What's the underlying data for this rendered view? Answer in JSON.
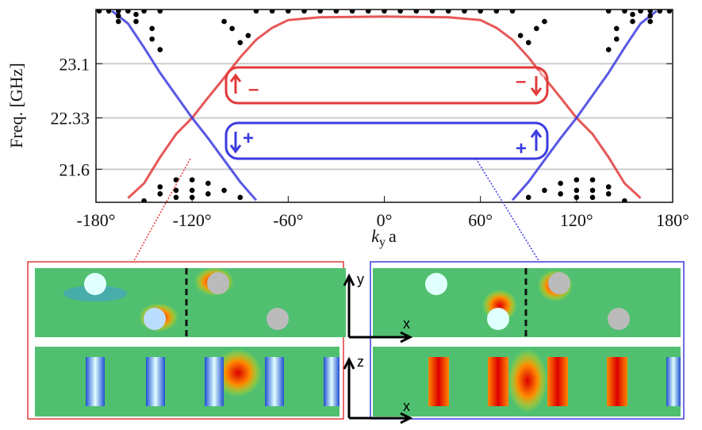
{
  "chart_data": {
    "type": "line",
    "ylabel": "Freq. [GHz]",
    "xlabel_parts": [
      "k",
      "y",
      "a"
    ],
    "xlim": [
      -180,
      180
    ],
    "ylim": [
      21.13,
      23.87
    ],
    "xticks": [
      {
        "value": -180,
        "label": "-180°"
      },
      {
        "value": -120,
        "label": "-120°"
      },
      {
        "value": -60,
        "label": "-60°"
      },
      {
        "value": 0,
        "label": "0°"
      },
      {
        "value": 60,
        "label": "60°"
      },
      {
        "value": 120,
        "label": "120°"
      },
      {
        "value": 180,
        "label": "180°"
      }
    ],
    "yticks": [
      21.6,
      22.33,
      23.1
    ],
    "grid": true,
    "series": [
      {
        "color": "#e23a3a",
        "x": [
          -160,
          -150,
          -140,
          -130,
          -120,
          -110,
          -100,
          -90,
          -80,
          -70,
          -60,
          -40,
          0,
          40,
          60,
          70,
          80,
          90,
          100,
          110,
          120,
          130,
          140,
          150,
          160
        ],
        "values": [
          21.19,
          21.4,
          21.77,
          22.1,
          22.33,
          22.62,
          22.9,
          23.19,
          23.44,
          23.61,
          23.72,
          23.76,
          23.77,
          23.76,
          23.72,
          23.61,
          23.44,
          23.19,
          22.9,
          22.62,
          22.33,
          22.1,
          21.77,
          21.4,
          21.19
        ]
      },
      {
        "color": "#3b3be0",
        "x": [
          -170,
          -160,
          -150,
          -140,
          -130,
          -120,
          -110,
          -100,
          -90,
          -80,
          0,
          80,
          90,
          100,
          110,
          120,
          130,
          140,
          150,
          160,
          170
        ],
        "values": [
          23.85,
          23.67,
          23.33,
          22.97,
          22.65,
          22.33,
          22.04,
          21.73,
          21.42,
          21.16,
          null,
          21.16,
          21.42,
          21.73,
          22.04,
          22.33,
          22.65,
          22.97,
          23.33,
          23.67,
          23.85
        ]
      }
    ],
    "points": {
      "color": "#000000",
      "x": [
        -178,
        -172,
        -166,
        -160,
        -150,
        -140,
        -80,
        -70,
        -60,
        -50,
        -40,
        -30,
        -20,
        -10,
        0,
        10,
        20,
        30,
        40,
        50,
        60,
        70,
        80,
        140,
        150,
        160,
        166,
        172,
        178,
        -166,
        -166,
        -155,
        -155,
        -145,
        -145,
        -140,
        -100,
        -95,
        -90,
        -85,
        166,
        166,
        155,
        155,
        145,
        145,
        140,
        100,
        95,
        90,
        85,
        -150,
        -140,
        -140,
        -130,
        -130,
        -130,
        -120,
        -120,
        -120,
        -110,
        -110,
        -100,
        -90,
        150,
        140,
        140,
        130,
        130,
        130,
        120,
        120,
        120,
        110,
        110,
        100,
        90
      ],
      "values": [
        23.85,
        23.85,
        23.85,
        23.85,
        23.85,
        23.85,
        23.85,
        23.85,
        23.85,
        23.85,
        23.85,
        23.85,
        23.85,
        23.85,
        23.85,
        23.85,
        23.85,
        23.85,
        23.85,
        23.85,
        23.85,
        23.85,
        23.85,
        23.85,
        23.85,
        23.85,
        23.85,
        23.85,
        23.85,
        23.78,
        23.7,
        23.8,
        23.7,
        23.6,
        23.45,
        23.3,
        23.7,
        23.6,
        23.4,
        23.5,
        23.78,
        23.7,
        23.8,
        23.7,
        23.6,
        23.45,
        23.3,
        23.7,
        23.6,
        23.4,
        23.5,
        21.15,
        21.25,
        21.35,
        21.2,
        21.3,
        21.45,
        21.2,
        21.3,
        21.45,
        21.25,
        21.4,
        21.3,
        21.2,
        21.15,
        21.25,
        21.35,
        21.2,
        21.3,
        21.45,
        21.2,
        21.3,
        21.45,
        21.25,
        21.4,
        21.3,
        21.2
      ]
    },
    "annotations": [
      "–",
      "–",
      "+",
      "+"
    ],
    "inset_axis_labels": [
      "y",
      "x",
      "z",
      "x"
    ]
  }
}
